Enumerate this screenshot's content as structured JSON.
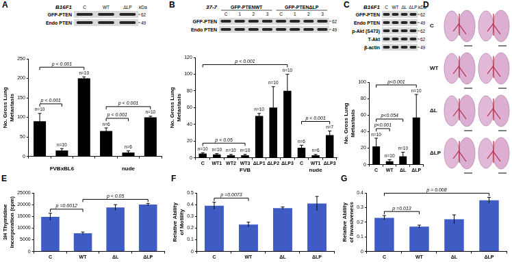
{
  "chart_data": [
    {
      "panel": "A",
      "type": "bar",
      "y_label": "No. Gross Lung Metastasis",
      "categories": [
        null,
        null,
        null,
        null,
        null,
        null
      ],
      "values": [
        90,
        15,
        200,
        65,
        10,
        100
      ],
      "errors": [
        20,
        5,
        4,
        8,
        4,
        3
      ],
      "n_labels": [
        "n=10",
        "n=10",
        "n=10",
        "n=6",
        "n=6",
        "n=10"
      ],
      "color": "#000000",
      "ylim": [
        0,
        250
      ],
      "yticks": [
        0,
        50,
        100,
        150,
        200,
        250
      ],
      "grid": false,
      "groups": [
        {
          "label": "FVBxBL6",
          "from": 0,
          "to": 2
        },
        {
          "label": "nude",
          "from": 3,
          "to": 5
        }
      ],
      "brackets": [
        {
          "between": [
            0,
            1
          ],
          "text": "p < 0.001"
        },
        {
          "between": [
            0,
            2
          ],
          "text": "p < 0.001"
        },
        {
          "between": [
            3,
            4
          ],
          "text": "p < 0.001"
        },
        {
          "between": [
            3,
            5
          ],
          "text": "p < 0.001"
        }
      ],
      "blot": {
        "header": "B16F1",
        "kda_title": "kDa",
        "lane_groups": [
          {
            "lanes": [
              "C",
              "WT",
              "ΔLP"
            ]
          }
        ],
        "rows": [
          {
            "label": "GFP-PTEN",
            "kda": 62
          },
          {
            "label": "Endo PTEN",
            "kda": 49
          }
        ]
      }
    },
    {
      "panel": "B",
      "type": "bar",
      "y_label": "No. Gross Lung Metastasis",
      "categories": [
        "C",
        "WT1",
        "WT2",
        "WT3",
        "ΔLP1",
        "ΔLP2",
        "ΔLP3",
        "C",
        "WT1",
        "ΔLP3"
      ],
      "values": [
        5,
        4,
        3,
        3,
        50,
        60,
        80,
        12,
        3,
        27
      ],
      "errors": [
        1,
        1,
        1,
        1,
        3,
        25,
        20,
        3,
        1,
        5
      ],
      "n_labels": [
        "n=10",
        "n=10",
        "n=10",
        "n=10",
        "n=10",
        "n=10",
        "n=10",
        "n=6",
        "n=6",
        "n=7"
      ],
      "color": "#000000",
      "ylim": [
        0,
        120
      ],
      "yticks": [
        0,
        20,
        40,
        60,
        80,
        100,
        120
      ],
      "grid": false,
      "groups": [
        {
          "label": "FVB",
          "from": 0,
          "to": 6
        },
        {
          "label": "nude",
          "from": 7,
          "to": 9
        }
      ],
      "brackets": [
        {
          "between": [
            0,
            3
          ],
          "text": "p < 0.05"
        },
        {
          "between": [
            0,
            6
          ],
          "text": "p < 0.001"
        },
        {
          "between": [
            7,
            9
          ],
          "text": "p < 0.001"
        }
      ],
      "blot": {
        "header": "37-7",
        "lane_groups": [
          {
            "label": "GFP-PTENWT",
            "lanes": [
              "C",
              "1",
              "2",
              "3"
            ]
          },
          {
            "label": "GFP-PTENΔLP",
            "lanes": [
              "C",
              "1",
              "2",
              "3"
            ]
          }
        ],
        "rows": [
          {
            "label": "GFP-PTEN",
            "kda": 62
          },
          {
            "label": "Endo PTEN",
            "kda": 49
          }
        ]
      }
    },
    {
      "panel": "C",
      "type": "bar",
      "y_label": "No. Gross Lung Metastasis",
      "categories": [
        "C",
        "WT",
        "ΔL",
        "ΔLP"
      ],
      "values": [
        22,
        4,
        10,
        57
      ],
      "errors": [
        10,
        2,
        5,
        28
      ],
      "n_labels": [
        "n=10",
        "n=10",
        "n=10",
        "n=10"
      ],
      "color": "#000000",
      "ylim": [
        0,
        100
      ],
      "yticks": [
        0,
        20,
        40,
        60,
        80,
        100
      ],
      "grid": false,
      "brackets": [
        {
          "between": [
            0,
            1
          ],
          "text": "p<0.001"
        },
        {
          "between": [
            0,
            2
          ],
          "text": "p<0.054"
        },
        {
          "between": [
            0,
            3
          ],
          "text": "p<0.001"
        }
      ],
      "blot": {
        "header": "B16F1",
        "kda_title": "kDa",
        "lane_groups": [
          {
            "lanes": [
              "C",
              "WT",
              "ΔL",
              "ΔLP"
            ]
          }
        ],
        "rows": [
          {
            "label": "GFP-PTEN",
            "kda": 62
          },
          {
            "label": "Endo PTEN",
            "kda": 49
          },
          {
            "label": "p-Akt (S473)",
            "kda": 62
          },
          {
            "label": "T-Akt",
            "kda": 62
          },
          {
            "label": "β-actin",
            "kda": 49
          }
        ]
      }
    },
    {
      "panel": "E",
      "type": "bar",
      "y_label": "3H Thymidine Incorporation (cpm)",
      "categories": [
        "C",
        "WT",
        "ΔL",
        "ΔLP"
      ],
      "values": [
        14800,
        7800,
        18800,
        20000
      ],
      "errors": [
        1500,
        500,
        1200,
        500
      ],
      "color": "#3f5bc4",
      "ylim": [
        0,
        25000
      ],
      "yticks": [
        0,
        5000,
        10000,
        15000,
        20000,
        25000
      ],
      "grid": false,
      "brackets": [
        {
          "between": [
            0,
            1
          ],
          "text": "p =0.0012"
        },
        {
          "between": [
            1,
            3
          ],
          "text": "p < 0.05"
        }
      ]
    },
    {
      "panel": "F",
      "type": "bar",
      "y_label": "Relative Ability of Motility",
      "categories": [
        "C",
        "WT",
        "ΔL",
        "ΔLP"
      ],
      "values": [
        0.39,
        0.23,
        0.37,
        0.41
      ],
      "errors": [
        0.03,
        0.02,
        0.01,
        0.06
      ],
      "color": "#3f5bc4",
      "ylim": [
        0,
        0.5
      ],
      "yticks": [
        0,
        0.1,
        0.2,
        0.3,
        0.4,
        0.5
      ],
      "grid": false,
      "brackets": [
        {
          "between": [
            0,
            1
          ],
          "text": "p =0.0073"
        }
      ]
    },
    {
      "panel": "G",
      "type": "bar",
      "y_label": "Relative Ability of Invasiveness",
      "categories": [
        "C",
        "WT",
        "ΔL",
        "ΔLP"
      ],
      "values": [
        0.23,
        0.17,
        0.22,
        0.35
      ],
      "errors": [
        0.015,
        0.01,
        0.03,
        0.02
      ],
      "color": "#3f5bc4",
      "ylim": [
        0,
        0.4
      ],
      "yticks": [
        0,
        0.1,
        0.2,
        0.3,
        0.4
      ],
      "grid": false,
      "brackets": [
        {
          "between": [
            0,
            1
          ],
          "text": "p =0.013"
        },
        {
          "between": [
            0,
            3
          ],
          "text": "p = 0.008"
        }
      ]
    }
  ],
  "lung_sections": {
    "panel": "D",
    "rows": [
      "C",
      "WT",
      "ΔL",
      "ΔLP"
    ]
  }
}
